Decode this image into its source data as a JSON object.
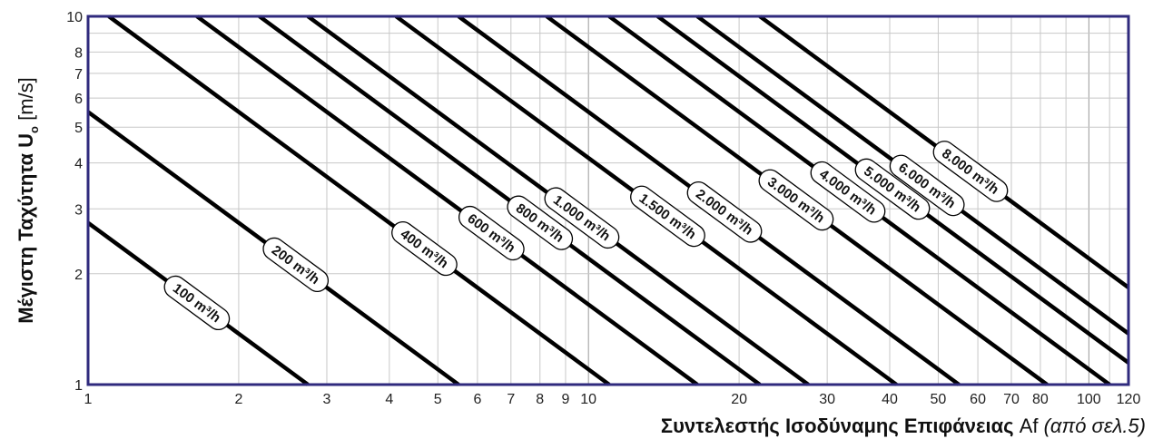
{
  "chart_data": {
    "type": "line",
    "xscale": "log",
    "yscale": "log",
    "xlim": [
      1,
      120
    ],
    "ylim": [
      1,
      10
    ],
    "grid": true,
    "xticks": [
      1,
      2,
      3,
      4,
      5,
      6,
      7,
      8,
      9,
      10,
      20,
      30,
      40,
      50,
      60,
      70,
      80,
      100,
      120
    ],
    "yticks": [
      1,
      2,
      3,
      4,
      5,
      6,
      7,
      8,
      10
    ],
    "xlabel": {
      "bold": "Συντελεστής Ισοδύναμης Επιφάνειας",
      "normal": " Af ",
      "italic": "(από σελ.5)"
    },
    "ylabel": {
      "main": "Μέγιστη Ταχύτητα U",
      "sub": "o",
      "unit": " [m/s]"
    },
    "series_unit": "m³/h",
    "series": [
      {
        "name": "100",
        "flow": 100,
        "label_at": 1.65
      },
      {
        "name": "200",
        "flow": 200,
        "label_at": 2.6
      },
      {
        "name": "400",
        "flow": 400,
        "label_at": 4.7
      },
      {
        "name": "600",
        "flow": 600,
        "label_at": 6.4
      },
      {
        "name": "800",
        "flow": 800,
        "label_at": 8.0
      },
      {
        "name": "1.000",
        "flow": 1000,
        "label_at": 9.7
      },
      {
        "name": "1.500",
        "flow": 1500,
        "label_at": 14.4
      },
      {
        "name": "2.000",
        "flow": 2000,
        "label_at": 18.7
      },
      {
        "name": "3.000",
        "flow": 3000,
        "label_at": 26.0
      },
      {
        "name": "4.000",
        "flow": 4000,
        "label_at": 33.0
      },
      {
        "name": "5.000",
        "flow": 5000,
        "label_at": 40.5
      },
      {
        "name": "6.000",
        "flow": 6000,
        "label_at": 47.5
      },
      {
        "name": "8.000",
        "flow": 8000,
        "label_at": 58.0
      }
    ]
  }
}
